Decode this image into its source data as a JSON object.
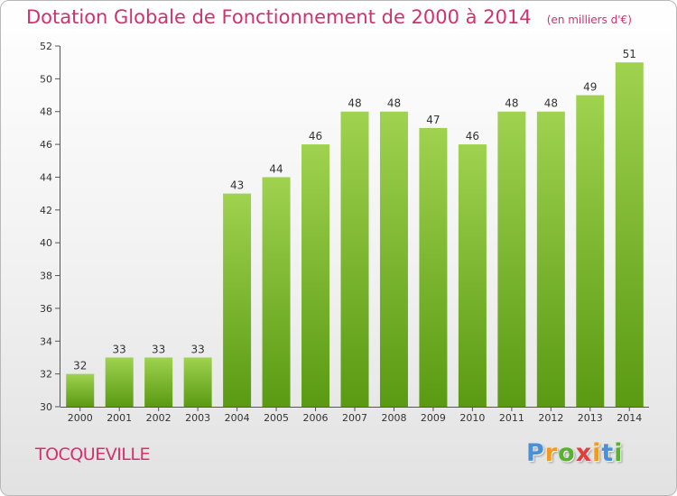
{
  "chart_data": {
    "type": "bar",
    "title": "Dotation Globale de Fonctionnement de 2000 à 2014",
    "unit": "(en milliers d'€)",
    "categories": [
      "2000",
      "2001",
      "2002",
      "2003",
      "2004",
      "2005",
      "2006",
      "2007",
      "2008",
      "2009",
      "2010",
      "2011",
      "2012",
      "2013",
      "2014"
    ],
    "values": [
      32,
      33,
      33,
      33,
      43,
      44,
      46,
      48,
      48,
      47,
      46,
      48,
      48,
      49,
      51
    ],
    "ylim": [
      30,
      52
    ],
    "yticks": [
      30,
      32,
      34,
      36,
      38,
      40,
      42,
      44,
      46,
      48,
      50,
      52
    ],
    "xlabel": "",
    "ylabel": "",
    "grid": false,
    "colors": {
      "bar_top": "#9fd24f",
      "bar_bottom": "#5a9a12",
      "text": "#d4306e"
    }
  },
  "footer": {
    "place": "TOCQUEVILLE",
    "brand": {
      "letters": [
        "P",
        "r",
        "o",
        "x",
        "i",
        "t",
        "i"
      ],
      "colors": [
        "#4a90d9",
        "#f39a1e",
        "#5ab030",
        "#e23d3d",
        "#f39a1e",
        "#4a90d9",
        "#5ab030"
      ]
    }
  }
}
